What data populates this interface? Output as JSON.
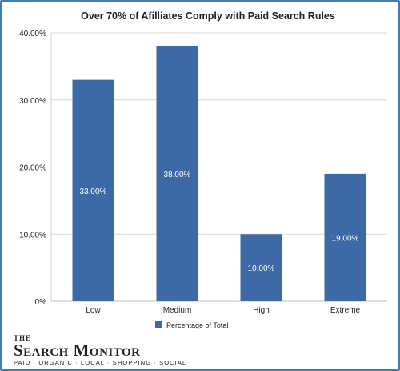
{
  "chart_data": {
    "type": "bar",
    "title": "Over 70% of Afilliates Comply with Paid Search Rules",
    "categories": [
      "Low",
      "Medium",
      "High",
      "Extreme"
    ],
    "series": [
      {
        "name": "Percentage of Total",
        "values": [
          33.0,
          38.0,
          10.0,
          19.0
        ]
      }
    ],
    "data_labels": [
      "33.00%",
      "38.00%",
      "10.00%",
      "19.00%"
    ],
    "ylim": [
      0,
      40
    ],
    "y_ticks": [
      0,
      10,
      20,
      30,
      40
    ],
    "y_tick_labels": [
      "0%",
      "10.00%",
      "20.00%",
      "30.00%",
      "40.00%"
    ],
    "grid": true,
    "legend_position": "bottom-center",
    "colors": {
      "bar": "#3d6aa6",
      "grid": "#d9d9d9",
      "label": "#ffffff",
      "frame": "#3f7bbf"
    }
  },
  "logo": {
    "line1": "THE",
    "line2": "Search Monitor",
    "line3": "PAID · ORGANIC · LOCAL · SHOPPING · SOCIAL"
  }
}
